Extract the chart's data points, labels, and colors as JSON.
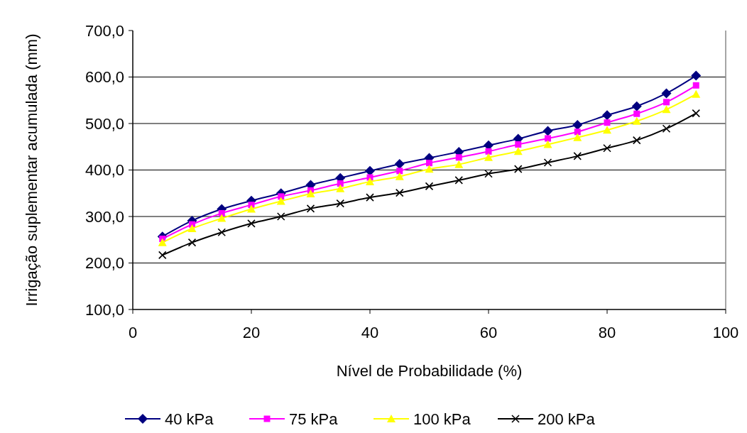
{
  "chart_data": {
    "type": "line",
    "xlabel": "Nível de Probabilidade (%)",
    "ylabel": "Irrigação suplementar  acumulada (mm)",
    "x": [
      5,
      10,
      15,
      20,
      25,
      30,
      35,
      40,
      45,
      50,
      55,
      60,
      65,
      70,
      75,
      80,
      85,
      90,
      95
    ],
    "xlim": [
      0,
      100
    ],
    "xticks": [
      0,
      20,
      40,
      60,
      80,
      100
    ],
    "ylim": [
      100,
      700
    ],
    "yticks": [
      {
        "value": 100,
        "label": "100,0"
      },
      {
        "value": 200,
        "label": "200,0"
      },
      {
        "value": 300,
        "label": "300,0"
      },
      {
        "value": 400,
        "label": "400,0"
      },
      {
        "value": 500,
        "label": "500,0"
      },
      {
        "value": 600,
        "label": "600,0"
      },
      {
        "value": 700,
        "label": "700,0"
      }
    ],
    "grid": "y",
    "legend": "bottom",
    "series": [
      {
        "name": "40 kPa",
        "color": "#000080",
        "marker": "diamond",
        "values": [
          257,
          291,
          316,
          334,
          350,
          368,
          383,
          398,
          413,
          426,
          439,
          453,
          467,
          484,
          497,
          518,
          537,
          565,
          603
        ]
      },
      {
        "name": "75 kPa",
        "color": "#ff00ff",
        "marker": "square",
        "values": [
          252,
          283,
          307,
          325,
          343,
          356,
          371,
          384,
          398,
          415,
          427,
          440,
          455,
          468,
          482,
          502,
          521,
          546,
          582
        ]
      },
      {
        "name": "100 kPa",
        "color": "#ffff00",
        "marker": "triangle",
        "values": [
          244,
          274,
          296,
          316,
          333,
          349,
          360,
          375,
          386,
          402,
          412,
          427,
          440,
          455,
          470,
          486,
          505,
          530,
          563
        ]
      },
      {
        "name": "200 kPa",
        "color": "#000000",
        "marker": "cross",
        "values": [
          217,
          244,
          266,
          285,
          300,
          317,
          328,
          341,
          351,
          365,
          378,
          392,
          402,
          416,
          430,
          447,
          464,
          489,
          522
        ]
      }
    ]
  }
}
